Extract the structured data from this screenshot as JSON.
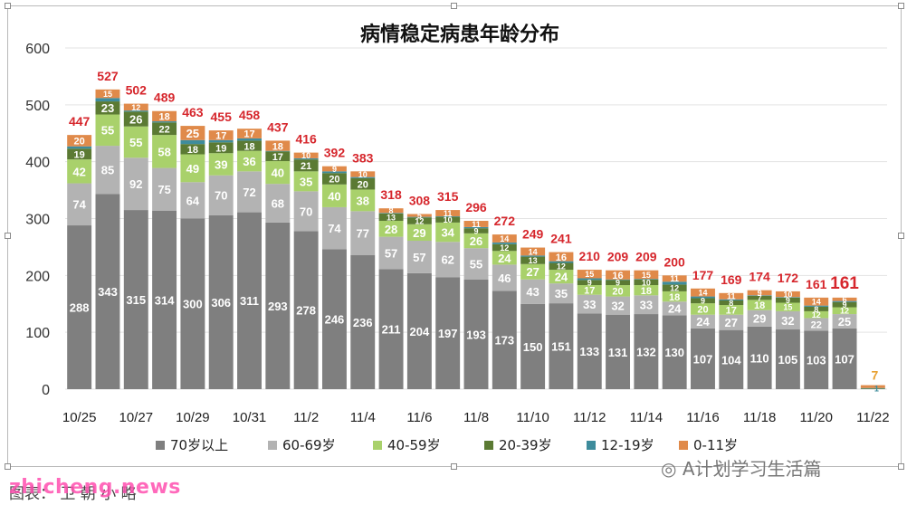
{
  "chart_data": {
    "type": "bar",
    "stacked": true,
    "title": "病情稳定病患年龄分布",
    "xlabel": "",
    "ylabel": "",
    "ylim": [
      0,
      600
    ],
    "yticks": [
      0,
      100,
      200,
      300,
      400,
      500,
      600
    ],
    "grid": true,
    "legend_position": "bottom",
    "categories": [
      "10/25",
      "10/26",
      "10/27",
      "10/28",
      "10/29",
      "10/30",
      "10/31",
      "11/1",
      "11/2",
      "11/3",
      "11/4",
      "11/5",
      "11/6",
      "11/7",
      "11/8",
      "11/9",
      "11/10",
      "11/11",
      "11/12",
      "11/13",
      "11/14",
      "11/15",
      "11/16",
      "11/17",
      "11/18",
      "11/19",
      "11/20",
      "11/21",
      "11/22"
    ],
    "x_tick_labels": [
      "10/25",
      "",
      "10/27",
      "",
      "10/29",
      "",
      "10/31",
      "",
      "11/2",
      "",
      "11/4",
      "",
      "11/6",
      "",
      "11/8",
      "",
      "11/10",
      "",
      "11/12",
      "",
      "11/14",
      "",
      "11/16",
      "",
      "11/18",
      "",
      "11/20",
      "",
      "11/22"
    ],
    "totals": [
      447,
      527,
      502,
      489,
      463,
      455,
      458,
      437,
      416,
      392,
      383,
      318,
      308,
      315,
      296,
      272,
      249,
      241,
      210,
      209,
      209,
      200,
      177,
      169,
      174,
      172,
      161,
      161,
      7
    ],
    "series": [
      {
        "name": "70岁以上",
        "color": "#7f7f7f",
        "values": [
          288,
          343,
          315,
          314,
          300,
          306,
          311,
          293,
          278,
          246,
          236,
          211,
          204,
          197,
          193,
          173,
          150,
          151,
          133,
          131,
          132,
          130,
          107,
          104,
          110,
          105,
          103,
          107,
          0
        ]
      },
      {
        "name": "60-69岁",
        "color": "#b3b3b3",
        "values": [
          74,
          85,
          92,
          75,
          64,
          70,
          72,
          68,
          70,
          74,
          77,
          57,
          57,
          62,
          55,
          46,
          43,
          35,
          33,
          32,
          33,
          24,
          24,
          27,
          29,
          32,
          22,
          25,
          0
        ]
      },
      {
        "name": "40-59岁",
        "color": "#a9d16b",
        "values": [
          42,
          55,
          55,
          58,
          49,
          39,
          36,
          40,
          35,
          40,
          38,
          28,
          29,
          34,
          26,
          24,
          27,
          24,
          17,
          20,
          18,
          18,
          20,
          17,
          18,
          15,
          12,
          12,
          0
        ]
      },
      {
        "name": "20-39岁",
        "color": "#5b7a33",
        "values": [
          19,
          23,
          26,
          22,
          18,
          19,
          18,
          17,
          21,
          20,
          20,
          13,
          12,
          10,
          9,
          12,
          13,
          12,
          9,
          9,
          10,
          12,
          9,
          8,
          7,
          9,
          8,
          9,
          1
        ]
      },
      {
        "name": "12-19岁",
        "color": "#3e8c9c",
        "values": [
          4,
          6,
          2,
          2,
          7,
          4,
          4,
          1,
          2,
          3,
          2,
          1,
          1,
          1,
          2,
          3,
          2,
          3,
          3,
          1,
          1,
          5,
          3,
          2,
          1,
          1,
          2,
          2,
          1
        ]
      },
      {
        "name": "0-11岁",
        "color": "#e08a4a",
        "values": [
          20,
          15,
          12,
          18,
          25,
          17,
          17,
          18,
          10,
          9,
          10,
          8,
          5,
          11,
          11,
          14,
          14,
          16,
          15,
          16,
          15,
          11,
          14,
          11,
          9,
          10,
          14,
          6,
          5
        ]
      }
    ],
    "segment_labels_shown": [
      [
        288,
        74,
        42,
        19,
        null,
        20
      ],
      [
        343,
        85,
        55,
        23,
        null,
        15
      ],
      [
        315,
        92,
        55,
        26,
        null,
        12
      ],
      [
        314,
        75,
        58,
        22,
        null,
        18
      ],
      [
        300,
        64,
        49,
        18,
        null,
        25
      ],
      [
        306,
        70,
        39,
        19,
        null,
        17
      ],
      [
        311,
        72,
        36,
        18,
        null,
        17
      ],
      [
        293,
        68,
        40,
        17,
        null,
        18
      ],
      [
        278,
        70,
        35,
        21,
        null,
        10
      ],
      [
        246,
        74,
        40,
        20,
        null,
        9
      ],
      [
        236,
        77,
        38,
        20,
        null,
        10
      ],
      [
        211,
        57,
        28,
        13,
        null,
        8
      ],
      [
        204,
        57,
        29,
        12,
        null,
        5
      ],
      [
        197,
        62,
        34,
        10,
        null,
        11
      ],
      [
        193,
        55,
        26,
        9,
        null,
        11
      ],
      [
        173,
        46,
        24,
        12,
        null,
        14
      ],
      [
        150,
        43,
        27,
        13,
        null,
        14
      ],
      [
        151,
        35,
        24,
        12,
        null,
        16
      ],
      [
        133,
        33,
        17,
        9,
        null,
        15
      ],
      [
        131,
        32,
        20,
        9,
        null,
        16
      ],
      [
        132,
        33,
        18,
        10,
        null,
        15
      ],
      [
        130,
        24,
        18,
        12,
        null,
        11
      ],
      [
        107,
        24,
        20,
        9,
        null,
        14
      ],
      [
        104,
        27,
        17,
        8,
        null,
        11
      ],
      [
        110,
        29,
        18,
        7,
        null,
        9
      ],
      [
        105,
        32,
        15,
        9,
        null,
        10
      ],
      [
        103,
        22,
        12,
        8,
        null,
        14
      ],
      [
        107,
        25,
        12,
        9,
        null,
        6
      ],
      [
        null,
        null,
        null,
        null,
        1,
        null
      ]
    ]
  },
  "watermarks": [
    "zhicheng.news",
    "A计划学习生活篇"
  ],
  "caption": "图表：  卫 朝 小 略"
}
